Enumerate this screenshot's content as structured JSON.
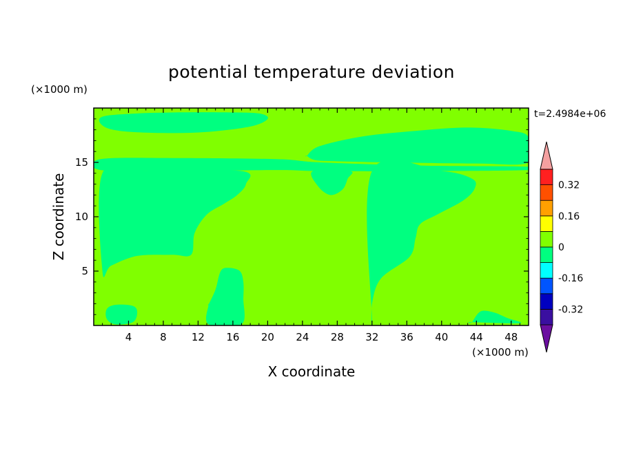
{
  "chart_data": {
    "type": "contour",
    "title": "potential temperature deviation",
    "xlabel": "X coordinate",
    "ylabel": "Z coordinate",
    "x_unit": "(×1000 m)",
    "y_unit": "(×1000 m)",
    "time_label": "t=2.4984e+06",
    "xlim": [
      0,
      50
    ],
    "ylim": [
      0,
      20
    ],
    "x_ticks": [
      4,
      8,
      12,
      16,
      20,
      24,
      28,
      32,
      36,
      40,
      44,
      48
    ],
    "y_ticks": [
      5,
      10,
      15
    ],
    "background_level_color": "#80ff00",
    "negative_region_color": "#00ff80",
    "regions": [
      {
        "name": "upper-left-negative",
        "level": "-0.08 to 0",
        "color": "#00ff80",
        "x": [
          1.0,
          5,
          10,
          15,
          19,
          20,
          18,
          13,
          8,
          3,
          1.0
        ],
        "y": [
          19.2,
          19.5,
          19.6,
          19.6,
          19.5,
          19.0,
          18.3,
          17.8,
          17.7,
          17.9,
          18.4
        ]
      },
      {
        "name": "upper-right-negative",
        "level": "-0.08 to 0",
        "color": "#00ff80",
        "x": [
          24.5,
          26,
          31,
          37,
          43,
          48,
          50,
          50,
          44,
          34,
          28,
          25.5,
          24.5
        ],
        "y": [
          15.6,
          16.5,
          17.4,
          17.9,
          18.2,
          17.9,
          17.3,
          15.0,
          14.9,
          15.0,
          15.1,
          15.2,
          15.6
        ]
      },
      {
        "name": "upper-band-negative",
        "level": "-0.08 to 0",
        "color": "#00ff80",
        "x": [
          0.8,
          9,
          21,
          26,
          38,
          50,
          50,
          38,
          26,
          21,
          9,
          0.8
        ],
        "y": [
          15.3,
          15.4,
          15.3,
          15.0,
          14.7,
          14.6,
          14.3,
          14.2,
          14.2,
          14.3,
          14.2,
          14.3
        ]
      },
      {
        "name": "central-left-negative",
        "level": "-0.08 to 0",
        "color": "#00ff80",
        "x": [
          1.0,
          6,
          17,
          17.5,
          16.5,
          15,
          13,
          11.6,
          11.2,
          9,
          5,
          2,
          1.0
        ],
        "y": [
          14.0,
          14.2,
          14.2,
          13.0,
          12.0,
          11.2,
          10.2,
          8.5,
          6.5,
          6.5,
          6.4,
          5.5,
          5.0
        ]
      },
      {
        "name": "dome-negative",
        "level": "-0.08 to 0",
        "color": "#00ff80",
        "x": [
          25.2,
          25.8,
          27.2,
          28.6,
          29.2,
          29.5
        ],
        "y": [
          14.2,
          12.8,
          12.0,
          12.5,
          13.5,
          14.2
        ]
      },
      {
        "name": "central-right-negative",
        "level": "-0.08 to 0",
        "color": "#00ff80",
        "x": [
          32,
          40,
          43.5,
          43.8,
          42.5,
          39.5,
          37.5,
          37,
          36.3,
          33,
          32,
          32
        ],
        "y": [
          14.2,
          14.2,
          13.5,
          12.6,
          11.5,
          10.2,
          9.3,
          8.0,
          6.3,
          4.3,
          2.0,
          0.5
        ]
      },
      {
        "name": "lower-left-negative",
        "level": "-0.08 to 0",
        "color": "#00ff80",
        "x": [
          1.5,
          2.5,
          4.5,
          5.0,
          4.5,
          2.5,
          1.5
        ],
        "y": [
          1.5,
          1.9,
          1.8,
          1.2,
          0.3,
          0.1,
          0.6
        ]
      },
      {
        "name": "lower-central-negative",
        "level": "-0.08 to 0",
        "color": "#00ff80",
        "x": [
          13.2,
          14.0,
          14.6,
          15.5,
          16.8,
          17.2,
          17.2,
          17.0,
          13.2,
          13.2
        ],
        "y": [
          1.9,
          3.3,
          5.0,
          5.3,
          5.0,
          4.0,
          2.5,
          0.1,
          0.1,
          1.9
        ]
      },
      {
        "name": "lower-right-bump-negative",
        "level": "-0.08 to 0",
        "color": "#00ff80",
        "x": [
          43.5,
          44.5,
          46,
          47.5,
          49,
          43.5
        ],
        "y": [
          0.3,
          1.3,
          1.2,
          0.7,
          0.2,
          0.3
        ]
      }
    ],
    "colorbar": {
      "labels": [
        "0.32",
        "0.16",
        "0",
        "-0.16",
        "-0.32"
      ],
      "label_levels": [
        0.32,
        0.16,
        0,
        -0.16,
        -0.32
      ],
      "min_level": -0.4,
      "max_level": 0.4,
      "step": 0.08,
      "colors": [
        "#6b0fa0",
        "#3a0fa0",
        "#0000c0",
        "#0055ff",
        "#00ffff",
        "#00ff80",
        "#80ff00",
        "#ffff00",
        "#ffa000",
        "#ff5000",
        "#ff2020",
        "#f4a0a0"
      ]
    }
  }
}
